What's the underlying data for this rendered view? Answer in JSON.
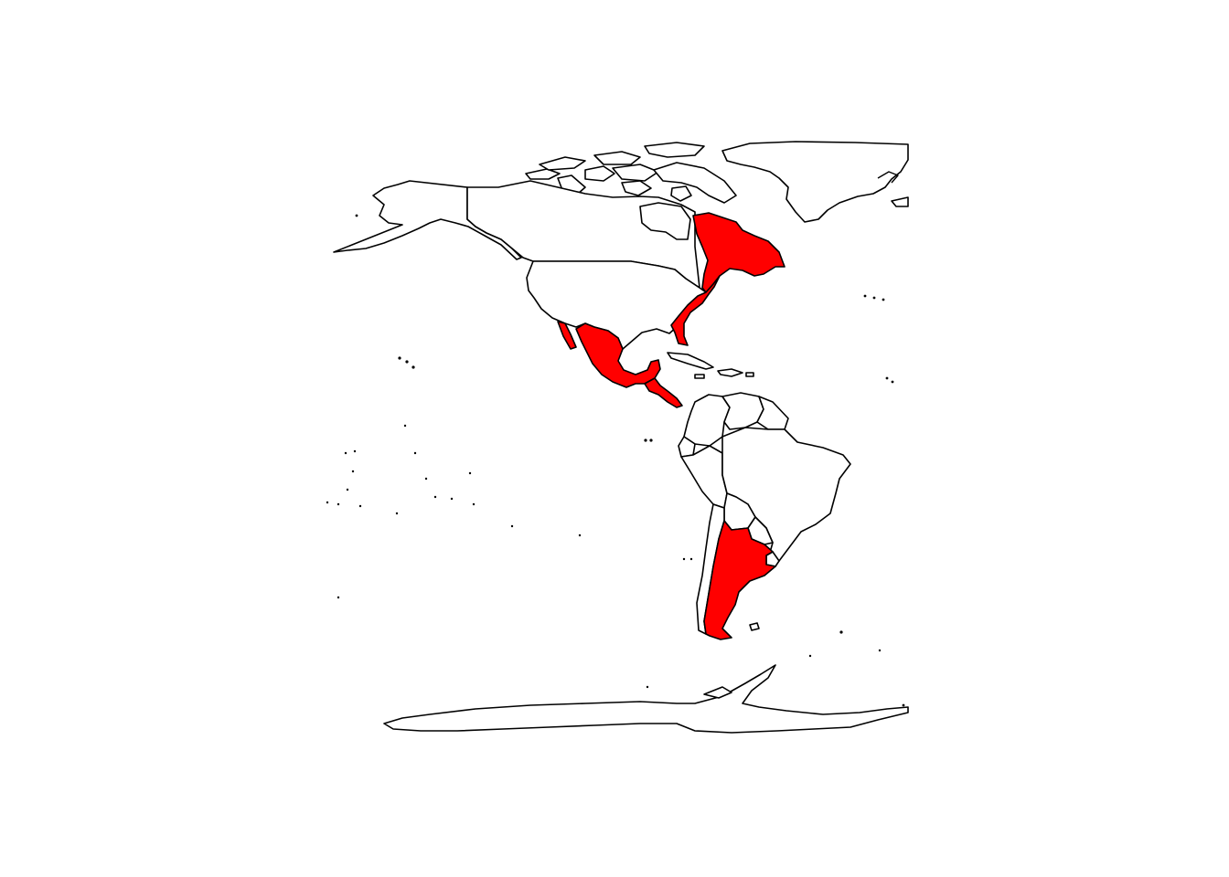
{
  "map": {
    "region": "Americas",
    "projection": "equirectangular",
    "background_color": "#ffffff",
    "country_fill": "#ffffff",
    "border_color": "#000000",
    "highlight_color": "#ff0000",
    "highlighted_regions": [
      "eastern-canada",
      "eastern-usa",
      "mexico",
      "central-america",
      "argentina"
    ]
  }
}
